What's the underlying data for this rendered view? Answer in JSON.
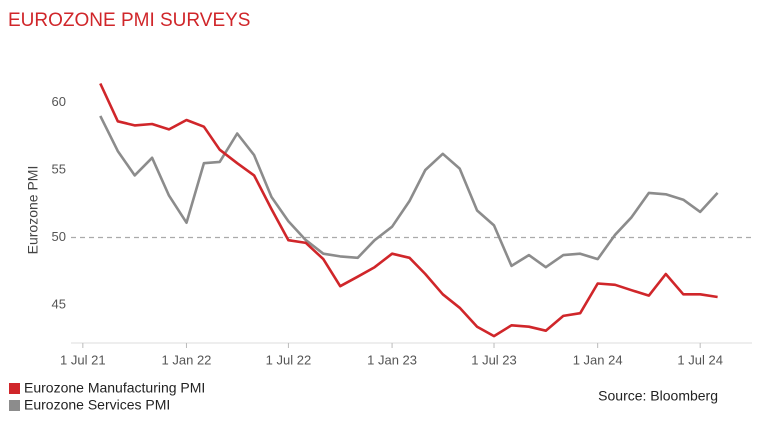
{
  "chart_data": {
    "type": "line",
    "title": "EUROZONE PMI SURVEYS",
    "y_label": "Eurozone PMI",
    "source": "Source: Bloomberg",
    "x": [
      "2021-08-01",
      "2021-09-01",
      "2021-10-01",
      "2021-11-01",
      "2021-12-01",
      "2022-01-01",
      "2022-02-01",
      "2022-03-01",
      "2022-04-01",
      "2022-05-01",
      "2022-06-01",
      "2022-07-01",
      "2022-08-01",
      "2022-09-01",
      "2022-10-01",
      "2022-11-01",
      "2022-12-01",
      "2023-01-01",
      "2023-02-01",
      "2023-03-01",
      "2023-04-01",
      "2023-05-01",
      "2023-06-01",
      "2023-07-01",
      "2023-08-01",
      "2023-09-01",
      "2023-10-01",
      "2023-11-01",
      "2023-12-01",
      "2024-01-01",
      "2024-02-01",
      "2024-03-01",
      "2024-04-01",
      "2024-05-01",
      "2024-06-01",
      "2024-07-01",
      "2024-08-01"
    ],
    "series": [
      {
        "name": "Eurozone Manufacturing PMI",
        "color": "#d0262a",
        "values": [
          61.4,
          58.6,
          58.3,
          58.4,
          58.0,
          58.7,
          58.2,
          56.5,
          55.5,
          54.6,
          52.1,
          49.8,
          49.6,
          48.4,
          46.4,
          47.1,
          47.8,
          48.8,
          48.5,
          47.3,
          45.8,
          44.8,
          43.4,
          42.7,
          43.5,
          43.4,
          43.1,
          44.2,
          44.4,
          46.6,
          46.5,
          46.1,
          45.7,
          47.3,
          45.8,
          45.8,
          45.6
        ]
      },
      {
        "name": "Eurozone Services PMI",
        "color": "#8c8c8c",
        "values": [
          59.0,
          56.4,
          54.6,
          55.9,
          53.1,
          51.1,
          55.5,
          55.6,
          57.7,
          56.1,
          53.0,
          51.2,
          49.8,
          48.8,
          48.6,
          48.5,
          49.8,
          50.8,
          52.7,
          55.0,
          56.2,
          55.1,
          52.0,
          50.9,
          47.9,
          48.7,
          47.8,
          48.7,
          48.8,
          48.4,
          50.2,
          51.5,
          53.3,
          53.2,
          52.8,
          51.9,
          53.3
        ]
      }
    ],
    "xlim": [
      "2021-06-10",
      "2024-10-01"
    ],
    "xticks": [
      {
        "value": "2021-07-01",
        "label": "1 Jul 21"
      },
      {
        "value": "2022-01-01",
        "label": "1 Jan 22"
      },
      {
        "value": "2022-07-01",
        "label": "1 Jul 22"
      },
      {
        "value": "2023-01-01",
        "label": "1 Jan 23"
      },
      {
        "value": "2023-07-01",
        "label": "1 Jul 23"
      },
      {
        "value": "2024-01-01",
        "label": "1 Jan 24"
      },
      {
        "value": "2024-07-01",
        "label": "1 Jul 24"
      }
    ],
    "ylim": [
      41.6,
      62.4
    ],
    "yticks": [
      45,
      50,
      55,
      60
    ],
    "reference_line": 50,
    "legend": "bottom-left"
  }
}
